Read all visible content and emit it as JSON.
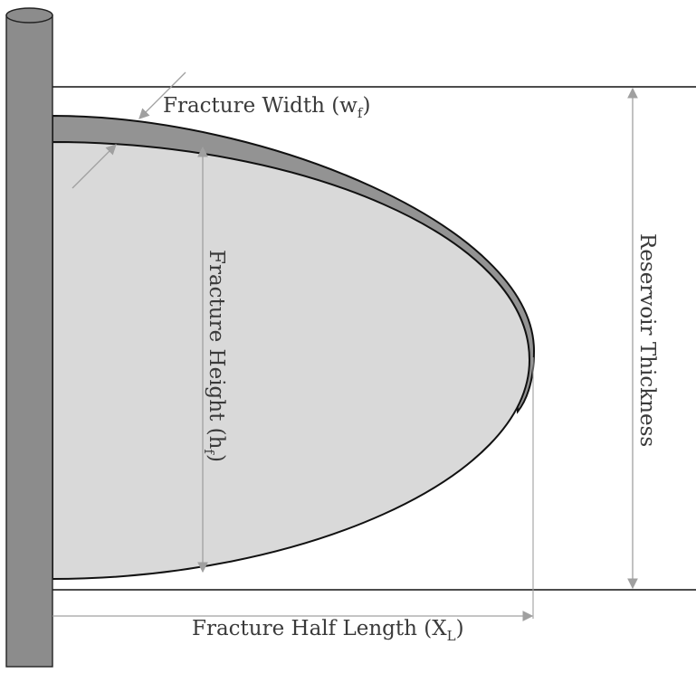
{
  "labels": {
    "fracture_width": {
      "text": "Fracture Width (w",
      "sub": "f",
      "close": ")"
    },
    "fracture_height": {
      "text": "Fracture Height (h",
      "sub": "f",
      "close": ")"
    },
    "reservoir_thickness": {
      "text": "Reservoir Thickness"
    },
    "fracture_half_length": {
      "text": "Fracture Half Length (X",
      "sub": "L",
      "close": ")"
    }
  },
  "colors": {
    "wellbore": "#8c8c8c",
    "fracture_wing": "#939393",
    "fracture_face": "#d9d9d9",
    "outline": "#111111",
    "dimension_line": "#a0a0a0"
  }
}
